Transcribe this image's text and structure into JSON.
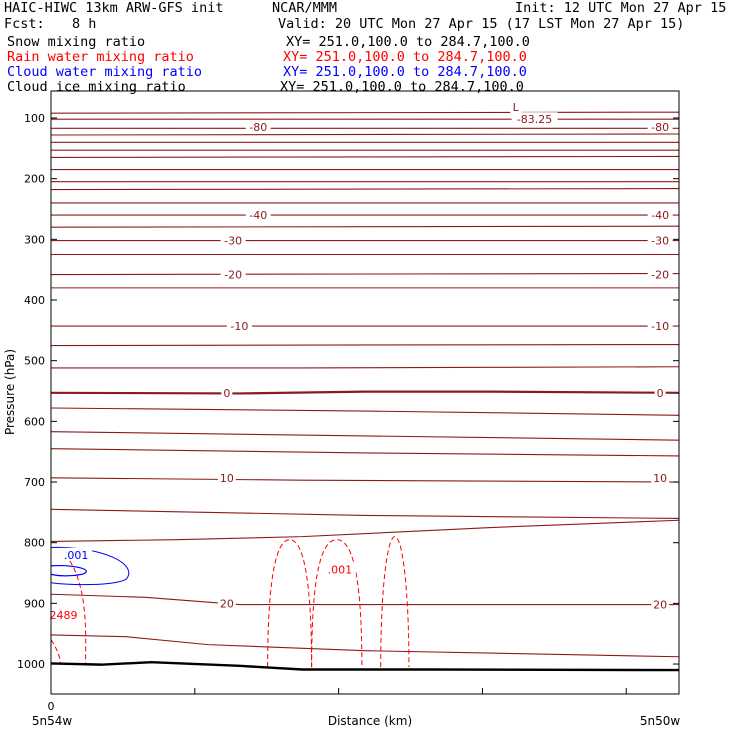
{
  "header": {
    "model": "HAIC-HIWC 13km ARW-GFS init",
    "org": "NCAR/MMM",
    "init": "Init: 12 UTC Mon 27 Apr 15",
    "fcst_label": "Fcst:",
    "fcst_value": "8 h",
    "valid": "Valid: 20 UTC Mon 27 Apr 15 (17 LST Mon 27 Apr 15)"
  },
  "fields": [
    {
      "name": "Snow mixing ratio",
      "xy": "XY= 251.0,100.0 to 284.7,100.0",
      "color": "#000000"
    },
    {
      "name": "Rain water mixing ratio",
      "xy": "XY= 251.0,100.0 to 284.7,100.0",
      "color": "#ff0000"
    },
    {
      "name": "Cloud water mixing ratio",
      "xy": "XY= 251.0,100.0 to 284.7,100.0",
      "color": "#0000ff"
    },
    {
      "name": "Cloud ice mixing ratio",
      "xy": "XY= 251.0,100.0 to 284.7,100.0",
      "color": "#000000"
    }
  ],
  "chart_data": {
    "type": "line",
    "ylabel": "Pressure (hPa)",
    "xlabel": "Distance (km)",
    "x_start_label": "5n54w",
    "x_end_label": "5n50w",
    "x_origin_label": "0",
    "yticks": [
      100,
      200,
      300,
      400,
      500,
      600,
      700,
      800,
      900,
      1000
    ],
    "ylim": [
      1050,
      50
    ],
    "xlim": [
      0,
      100
    ],
    "y_scale": "linear-pressure",
    "temperature_color": "#8b1a1a",
    "temp_labels": [
      {
        "text": "-80",
        "x": 33,
        "p": 115
      },
      {
        "text": "-80",
        "x": 97,
        "p": 115
      },
      {
        "text": "-83.25",
        "x": 77,
        "p": 102
      },
      {
        "text": "L",
        "x": 74,
        "p": 82
      },
      {
        "text": "-40",
        "x": 33,
        "p": 260
      },
      {
        "text": "-40",
        "x": 97,
        "p": 260
      },
      {
        "text": "-30",
        "x": 29,
        "p": 302
      },
      {
        "text": "-30",
        "x": 97,
        "p": 302
      },
      {
        "text": "-20",
        "x": 29,
        "p": 358
      },
      {
        "text": "-20",
        "x": 97,
        "p": 358
      },
      {
        "text": "-10",
        "x": 30,
        "p": 443
      },
      {
        "text": "-10",
        "x": 97,
        "p": 443
      },
      {
        "text": "0",
        "x": 28,
        "p": 553
      },
      {
        "text": "0",
        "x": 97,
        "p": 553
      },
      {
        "text": "10",
        "x": 28,
        "p": 693
      },
      {
        "text": "10",
        "x": 97,
        "p": 693
      },
      {
        "text": "20",
        "x": 28,
        "p": 900
      },
      {
        "text": "20",
        "x": 97,
        "p": 902
      }
    ],
    "rain_labels": [
      {
        "text": ".001",
        "x": 46,
        "p": 844
      },
      {
        "text": "2489",
        "x": 2,
        "p": 919
      }
    ],
    "cloud_labels": [
      {
        "text": ".001",
        "x": 4,
        "p": 820
      }
    ]
  }
}
